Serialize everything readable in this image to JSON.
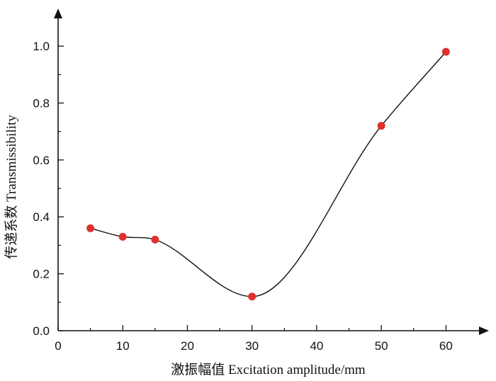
{
  "chart_data": {
    "type": "line",
    "title": "",
    "xlabel": "激振幅值 Excitation amplitude/mm",
    "ylabel": "传递系数 Transmissibility",
    "xlim": [
      0,
      65
    ],
    "ylim": [
      0,
      1.05
    ],
    "xticks": [
      0,
      10,
      20,
      30,
      40,
      50,
      60
    ],
    "yticks": [
      0.0,
      0.2,
      0.4,
      0.6,
      0.8,
      1.0
    ],
    "xtick_labels": [
      "0",
      "10",
      "20",
      "30",
      "40",
      "50",
      "60"
    ],
    "ytick_labels": [
      "0.0",
      "0.2",
      "0.4",
      "0.6",
      "0.8",
      "1.0"
    ],
    "grid": false,
    "legend": "none",
    "series": [
      {
        "x": [
          5,
          10,
          15,
          30,
          50,
          60
        ],
        "y": [
          0.36,
          0.33,
          0.32,
          0.12,
          0.72,
          0.98
        ],
        "line_color": "#111111",
        "marker_color": "#e03030",
        "smooth": true
      }
    ]
  }
}
